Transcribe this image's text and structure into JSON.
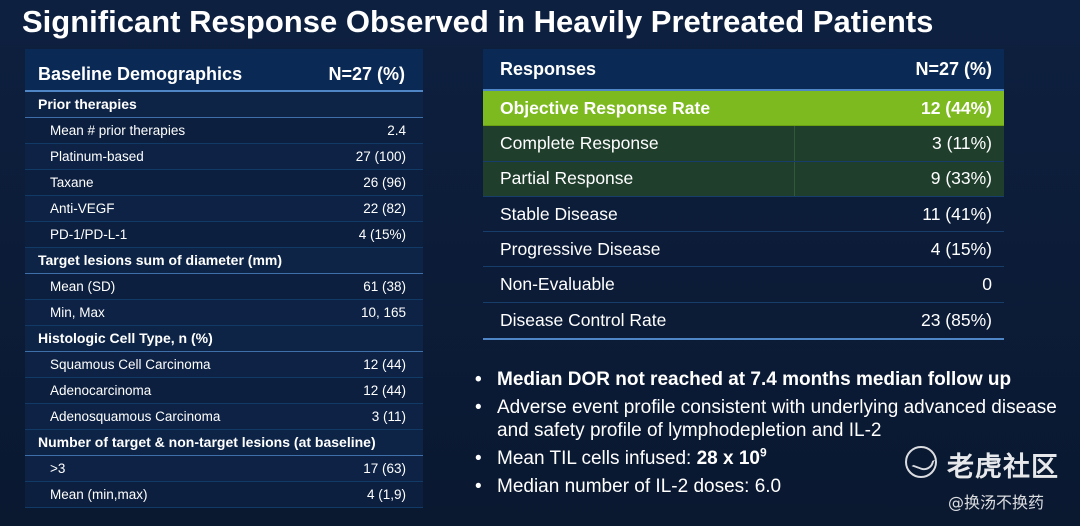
{
  "title": "Significant Response Observed in Heavily Pretreated Patients",
  "demographics": {
    "header_label": "Baseline Demographics",
    "header_value": "N=27 (%)",
    "sections": [
      {
        "label": "Prior therapies",
        "rows": [
          {
            "label": "Mean # prior therapies",
            "value": "2.4"
          },
          {
            "label": "Platinum-based",
            "value": "27 (100)"
          },
          {
            "label": "Taxane",
            "value": "26 (96)"
          },
          {
            "label": "Anti-VEGF",
            "value": "22 (82)"
          },
          {
            "label": "PD-1/PD-L-1",
            "value": "4 (15%)"
          }
        ]
      },
      {
        "label": "Target lesions sum of diameter (mm)",
        "rows": [
          {
            "label": "Mean (SD)",
            "value": "61 (38)"
          },
          {
            "label": "Min, Max",
            "value": "10, 165"
          }
        ]
      },
      {
        "label": "Histologic Cell Type, n (%)",
        "rows": [
          {
            "label": "Squamous Cell Carcinoma",
            "value": "12 (44)"
          },
          {
            "label": "Adenocarcinoma",
            "value": "12 (44)"
          },
          {
            "label": "Adenosquamous Carcinoma",
            "value": "3 (11)"
          }
        ]
      },
      {
        "label": "Number of target & non-target lesions (at baseline)",
        "rows": [
          {
            "label": ">3",
            "value": "17 (63)"
          },
          {
            "label": "Mean (min,max)",
            "value": "4 (1,9)"
          }
        ]
      }
    ]
  },
  "responses": {
    "header_label": "Responses",
    "header_value": "N=27 (%)",
    "rows": [
      {
        "label": "Objective Response Rate",
        "value": "12 (44%)"
      },
      {
        "label": "Complete Response",
        "value": "3 (11%)"
      },
      {
        "label": "Partial Response",
        "value": "9 (33%)"
      },
      {
        "label": "Stable Disease",
        "value": "11 (41%)"
      },
      {
        "label": "Progressive Disease",
        "value": "4 (15%)"
      },
      {
        "label": "Non-Evaluable",
        "value": "0"
      },
      {
        "label": "Disease Control Rate",
        "value": "23 (85%)"
      }
    ]
  },
  "bullets": {
    "b1": "Median DOR not reached at 7.4 months median follow up",
    "b2": "Adverse event profile consistent with underlying advanced disease and safety profile of lymphodepletion and IL-2",
    "b3_prefix": "Mean TIL cells infused: ",
    "b3_value": "28 x 10",
    "b3_exp": "9",
    "b4": "Median number of IL-2 doses: 6.0"
  },
  "watermark": {
    "brand": "老虎社区",
    "handle": "@换汤不换药"
  }
}
